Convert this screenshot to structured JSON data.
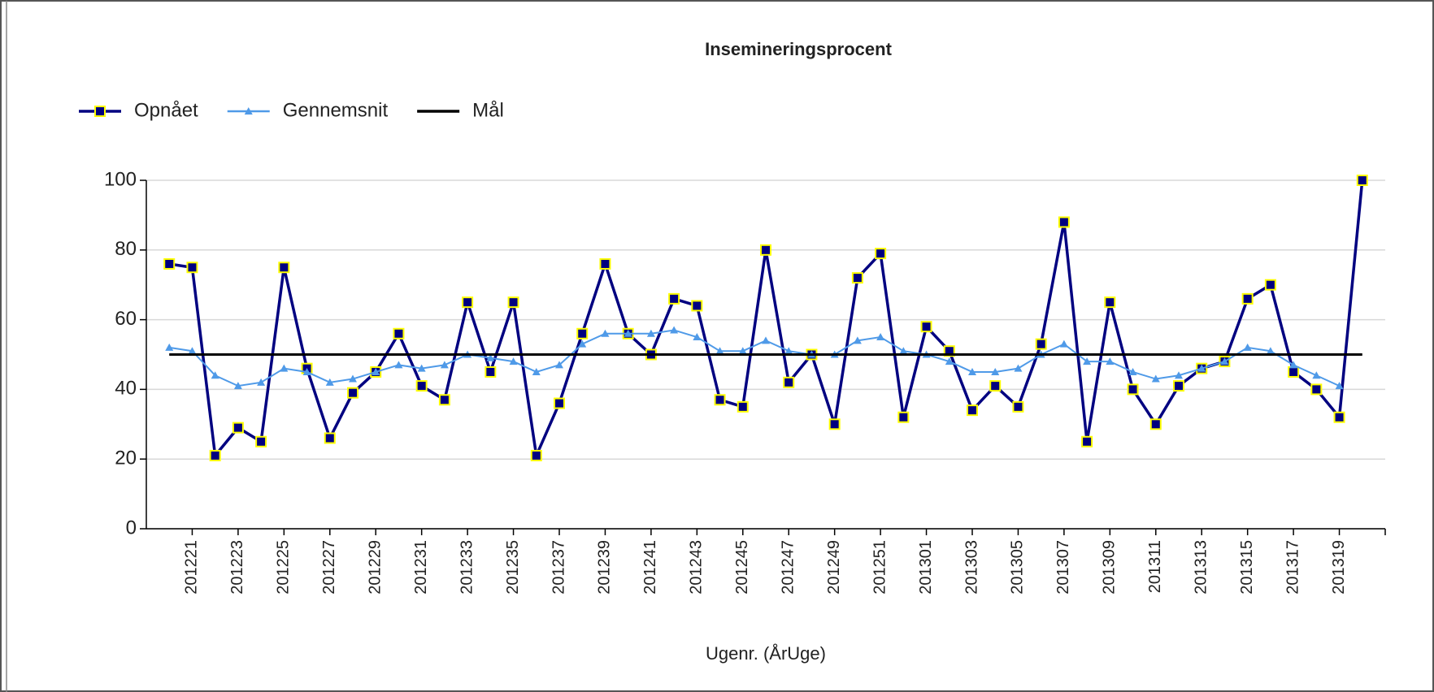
{
  "chart_data": {
    "type": "line",
    "title": "Insemineringsprocent",
    "x_label": "Ugenr. (ÅrUge)",
    "categories": [
      null,
      "201221",
      null,
      "201223",
      null,
      "201225",
      null,
      "201227",
      null,
      "201229",
      null,
      "201231",
      null,
      "201233",
      null,
      "201235",
      null,
      "201237",
      null,
      "201239",
      null,
      "201241",
      null,
      "201243",
      null,
      "201245",
      null,
      "201247",
      null,
      "201249",
      null,
      "201251",
      null,
      "201301",
      null,
      "201303",
      null,
      "201305",
      null,
      "201307",
      null,
      "201309",
      null,
      "201311",
      null,
      "201313",
      null,
      "201315",
      null,
      "201317",
      null,
      "201319",
      null
    ],
    "series": [
      {
        "name": "Opnået",
        "color": "#000080",
        "marker": "square",
        "values": [
          76,
          75,
          21,
          29,
          25,
          75,
          46,
          26,
          39,
          45,
          56,
          41,
          37,
          65,
          45,
          65,
          21,
          36,
          56,
          76,
          56,
          50,
          66,
          64,
          37,
          35,
          80,
          42,
          50,
          30,
          72,
          79,
          32,
          58,
          51,
          34,
          41,
          35,
          53,
          88,
          25,
          65,
          40,
          30,
          41,
          46,
          48,
          66,
          70,
          45,
          40,
          32,
          100
        ]
      },
      {
        "name": "Gennemsnit",
        "color": "#4f9ae8",
        "marker": "triangle",
        "values": [
          52,
          51,
          44,
          41,
          42,
          46,
          45,
          42,
          43,
          45,
          47,
          46,
          47,
          50,
          49,
          48,
          45,
          47,
          53,
          56,
          56,
          56,
          57,
          55,
          51,
          51,
          54,
          51,
          50,
          50,
          54,
          55,
          51,
          50,
          48,
          45,
          45,
          46,
          50,
          53,
          48,
          48,
          45,
          43,
          44,
          46,
          48,
          52,
          51,
          47,
          44,
          41,
          null
        ]
      },
      {
        "name": "Mål",
        "color": "#000000",
        "marker": "none",
        "values": [
          50,
          50,
          50,
          50,
          50,
          50,
          50,
          50,
          50,
          50,
          50,
          50,
          50,
          50,
          50,
          50,
          50,
          50,
          50,
          50,
          50,
          50,
          50,
          50,
          50,
          50,
          50,
          50,
          50,
          50,
          50,
          50,
          50,
          50,
          50,
          50,
          50,
          50,
          50,
          50,
          50,
          50,
          50,
          50,
          50,
          50,
          50,
          50,
          50,
          50,
          50,
          50,
          50
        ]
      }
    ],
    "ylim": [
      0,
      100
    ],
    "yticks": [
      0,
      20,
      40,
      60,
      80,
      100
    ],
    "grid": true,
    "legend": "top-left"
  }
}
